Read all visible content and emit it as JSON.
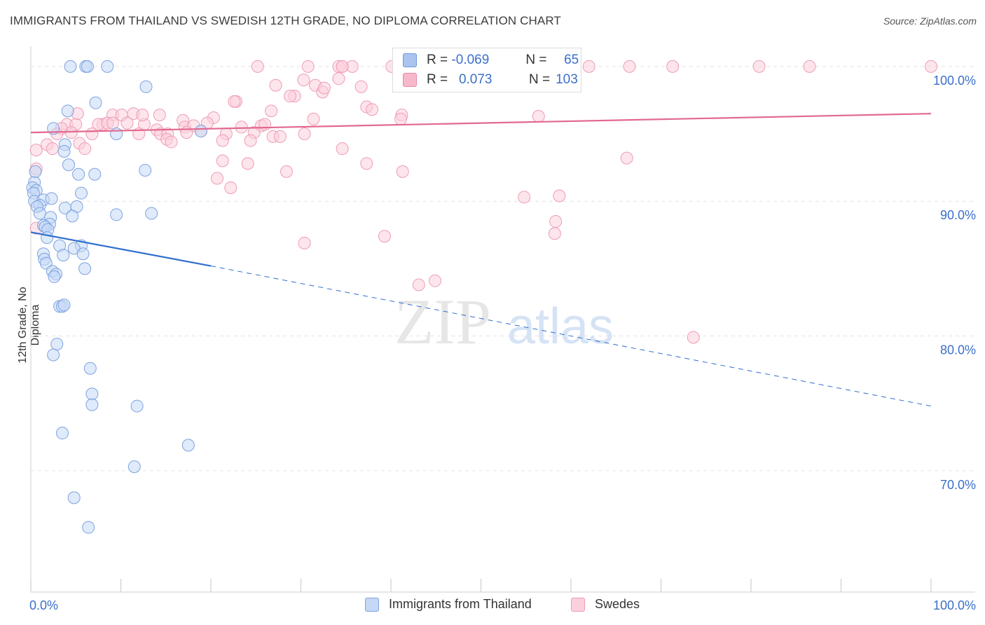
{
  "title": "IMMIGRANTS FROM THAILAND VS SWEDISH 12TH GRADE, NO DIPLOMA CORRELATION CHART",
  "source": "Source: ZipAtlas.com",
  "watermark": {
    "zip": "ZIP",
    "atlas": "atlas"
  },
  "legend": {
    "rows": [
      {
        "r_label": "R =",
        "r_value": "-0.069",
        "n_label": "N =",
        "n_value": "65",
        "color": "#a9c4ef",
        "border": "#6e98dc"
      },
      {
        "r_label": "R =",
        "r_value": "0.073",
        "n_label": "N =",
        "n_value": "103",
        "color": "#f7b8cb",
        "border": "#e889a7"
      }
    ]
  },
  "bottom_legend": [
    {
      "label": "Immigrants from Thailand",
      "color": "#c5d8f5",
      "border": "#7ea3e0"
    },
    {
      "label": "Swedes",
      "color": "#fbd0dd",
      "border": "#ee9cb6"
    }
  ],
  "chart_data": {
    "type": "scatter",
    "xlabel": "",
    "ylabel": "12th Grade, No Diploma",
    "xlim": [
      0,
      100
    ],
    "ylim": [
      61,
      101.5
    ],
    "x_tick_labels": [
      {
        "value": 0,
        "label": "0.0%"
      },
      {
        "value": 100,
        "label": "100.0%"
      }
    ],
    "y_tick_labels": [
      {
        "value": 100,
        "label": "100.0%"
      },
      {
        "value": 90,
        "label": "90.0%"
      },
      {
        "value": 80,
        "label": "80.0%"
      },
      {
        "value": 70,
        "label": "70.0%"
      }
    ],
    "x_minor_ticks": [
      10,
      20,
      30,
      40,
      50,
      60,
      70,
      80,
      90
    ],
    "grid": true,
    "legend_position": "top-center",
    "series": [
      {
        "name": "Immigrants from Thailand",
        "color": "#7ea3e0",
        "fill": "#c5d8f5",
        "trend": {
          "x_solid": [
            0,
            20
          ],
          "y_solid": [
            87.7,
            85.2
          ],
          "x_dashed": [
            20,
            100
          ],
          "y_dashed": [
            85.2,
            74.8
          ],
          "color": "#2f6fce"
        },
        "points": [
          [
            4.4,
            100
          ],
          [
            6.1,
            100
          ],
          [
            6.3,
            100
          ],
          [
            8.5,
            100
          ],
          [
            12.8,
            98.5
          ],
          [
            7.2,
            97.3
          ],
          [
            4.1,
            96.7
          ],
          [
            9.5,
            95
          ],
          [
            3.8,
            94.2
          ],
          [
            3.7,
            93.7
          ],
          [
            4.2,
            92.7
          ],
          [
            5.3,
            92
          ],
          [
            7.1,
            92
          ],
          [
            12.7,
            92.3
          ],
          [
            0.4,
            91.4
          ],
          [
            0.2,
            91
          ],
          [
            0.6,
            90.8
          ],
          [
            0.3,
            90.6
          ],
          [
            5.6,
            90.6
          ],
          [
            0.4,
            90
          ],
          [
            1.4,
            90.1
          ],
          [
            2.3,
            90.2
          ],
          [
            1.0,
            89.7
          ],
          [
            0.7,
            89.6
          ],
          [
            3.8,
            89.5
          ],
          [
            5.1,
            89.6
          ],
          [
            1.0,
            89.1
          ],
          [
            9.5,
            89
          ],
          [
            13.4,
            89.1
          ],
          [
            4.6,
            88.9
          ],
          [
            2.2,
            88.8
          ],
          [
            2.1,
            88.3
          ],
          [
            1.4,
            88.2
          ],
          [
            1.6,
            88.1
          ],
          [
            1.9,
            87.9
          ],
          [
            1.8,
            87.3
          ],
          [
            3.2,
            86.7
          ],
          [
            5.6,
            86.7
          ],
          [
            4.8,
            86.5
          ],
          [
            1.4,
            86.1
          ],
          [
            3.6,
            86
          ],
          [
            5.8,
            86.1
          ],
          [
            1.5,
            85.7
          ],
          [
            1.7,
            85.4
          ],
          [
            6.0,
            85
          ],
          [
            2.4,
            84.8
          ],
          [
            2.8,
            84.6
          ],
          [
            2.6,
            84.4
          ],
          [
            3.2,
            82.2
          ],
          [
            3.5,
            82.2
          ],
          [
            3.7,
            82.3
          ],
          [
            2.9,
            79.4
          ],
          [
            2.5,
            78.6
          ],
          [
            6.6,
            77.6
          ],
          [
            6.8,
            75.7
          ],
          [
            6.8,
            74.9
          ],
          [
            11.8,
            74.8
          ],
          [
            3.5,
            72.8
          ],
          [
            17.5,
            71.9
          ],
          [
            11.5,
            70.3
          ],
          [
            4.8,
            68
          ],
          [
            6.4,
            65.8
          ],
          [
            2.5,
            95.4
          ],
          [
            18.9,
            95.2
          ],
          [
            0.5,
            92.2
          ]
        ]
      },
      {
        "name": "Swedes",
        "color": "#ee9cb6",
        "fill": "#fbd0dd",
        "trend": {
          "x": [
            0,
            100
          ],
          "y": [
            95.1,
            96.5
          ],
          "color": "#e2698f"
        },
        "points": [
          [
            25.2,
            100
          ],
          [
            30.8,
            100
          ],
          [
            34.2,
            100
          ],
          [
            34.6,
            100
          ],
          [
            35.7,
            100
          ],
          [
            40.1,
            100
          ],
          [
            41.1,
            100
          ],
          [
            45.3,
            100
          ],
          [
            49.9,
            100
          ],
          [
            53.2,
            100
          ],
          [
            58.9,
            100
          ],
          [
            62,
            100
          ],
          [
            66.5,
            100
          ],
          [
            71.3,
            100
          ],
          [
            80.9,
            100
          ],
          [
            86.5,
            100
          ],
          [
            100,
            100
          ],
          [
            34.6,
            100
          ],
          [
            27.2,
            98.6
          ],
          [
            30.3,
            99
          ],
          [
            31.6,
            98.6
          ],
          [
            34.2,
            99.1
          ],
          [
            32.4,
            98.1
          ],
          [
            29.3,
            97.8
          ],
          [
            28.8,
            97.8
          ],
          [
            22.8,
            97.4
          ],
          [
            37.3,
            97
          ],
          [
            37.9,
            96.8
          ],
          [
            41.2,
            96.4
          ],
          [
            26.7,
            96.7
          ],
          [
            9.1,
            96.4
          ],
          [
            10.1,
            96.4
          ],
          [
            11.4,
            96.5
          ],
          [
            14.3,
            96.4
          ],
          [
            16.9,
            96
          ],
          [
            20.3,
            96.2
          ],
          [
            31.4,
            96.1
          ],
          [
            41.1,
            96.1
          ],
          [
            56.4,
            96.3
          ],
          [
            4.0,
            95.7
          ],
          [
            5.0,
            95.7
          ],
          [
            8.0,
            95.7
          ],
          [
            7.5,
            95.7
          ],
          [
            8.5,
            95.8
          ],
          [
            10.7,
            95.8
          ],
          [
            12.6,
            95.7
          ],
          [
            14.0,
            95.3
          ],
          [
            17.1,
            95.5
          ],
          [
            18.1,
            95.6
          ],
          [
            19.6,
            95.8
          ],
          [
            23.4,
            95.5
          ],
          [
            25.6,
            95.6
          ],
          [
            26.0,
            95.7
          ],
          [
            3.4,
            95.4
          ],
          [
            4.5,
            95.1
          ],
          [
            2.9,
            95
          ],
          [
            6.8,
            95
          ],
          [
            12.0,
            95
          ],
          [
            14.4,
            95
          ],
          [
            15.2,
            95
          ],
          [
            17.3,
            95.1
          ],
          [
            18.9,
            95.2
          ],
          [
            21.7,
            95
          ],
          [
            24.8,
            95.1
          ],
          [
            26.9,
            94.8
          ],
          [
            27.7,
            94.8
          ],
          [
            30.4,
            95
          ],
          [
            1.8,
            94.2
          ],
          [
            5.4,
            94.3
          ],
          [
            15.1,
            94.6
          ],
          [
            15.6,
            94.4
          ],
          [
            21.3,
            94.5
          ],
          [
            24.4,
            94.5
          ],
          [
            2.4,
            93.9
          ],
          [
            6.0,
            93.9
          ],
          [
            34.6,
            93.9
          ],
          [
            0.6,
            93.8
          ],
          [
            0.6,
            92.4
          ],
          [
            21.3,
            93
          ],
          [
            24.1,
            92.8
          ],
          [
            37.3,
            92.8
          ],
          [
            66.2,
            93.2
          ],
          [
            28.4,
            92.2
          ],
          [
            41.3,
            92.2
          ],
          [
            20.7,
            91.7
          ],
          [
            22.2,
            91
          ],
          [
            54.8,
            90.3
          ],
          [
            58.7,
            90.4
          ],
          [
            0.6,
            88
          ],
          [
            58.2,
            87.6
          ],
          [
            39.3,
            87.4
          ],
          [
            30.4,
            86.9
          ],
          [
            44.9,
            84.1
          ],
          [
            43.1,
            83.8
          ],
          [
            73.6,
            79.9
          ],
          [
            36.7,
            98.5
          ],
          [
            22.6,
            97.4
          ],
          [
            12.4,
            96.4
          ],
          [
            44.3,
            99.8
          ],
          [
            9.1,
            95.8
          ],
          [
            5.2,
            96.5
          ],
          [
            32.6,
            98.4
          ],
          [
            58.3,
            88.5
          ]
        ]
      }
    ]
  }
}
